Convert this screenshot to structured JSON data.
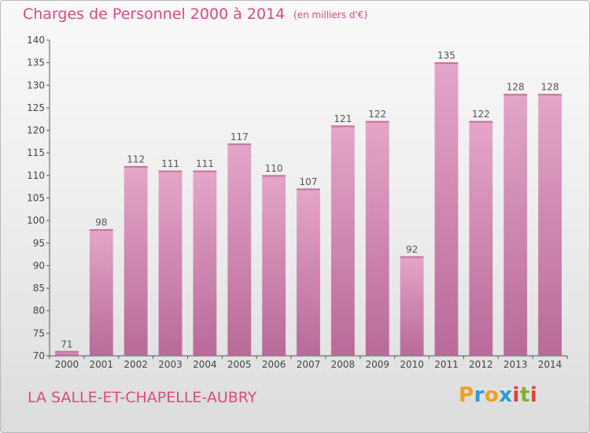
{
  "header": {
    "title": "Charges de Personnel 2000 à 2014",
    "unit": "(en milliers d'€)"
  },
  "footer": {
    "commune": "LA SALLE-ET-CHAPELLE-AUBRY",
    "logo_letters": [
      "P",
      "r",
      "o",
      "x",
      "i",
      "t",
      "i"
    ],
    "logo_colors": [
      "#f0a020",
      "#2a9ad8",
      "#f0a020",
      "#2a9ad8",
      "#e04040",
      "#80b030",
      "#e04040"
    ]
  },
  "colors": {
    "bar_top": "#e4a6c8",
    "bar_bottom": "#b86a98",
    "text_accent": "#d94a84"
  },
  "chart_data": {
    "type": "bar",
    "title": "Charges de Personnel 2000 à 2014",
    "subtitle": "(en milliers d'€)",
    "categories": [
      "2000",
      "2001",
      "2002",
      "2003",
      "2004",
      "2005",
      "2006",
      "2007",
      "2008",
      "2009",
      "2010",
      "2011",
      "2012",
      "2013",
      "2014"
    ],
    "values": [
      71,
      98,
      112,
      111,
      111,
      117,
      110,
      107,
      121,
      122,
      92,
      135,
      122,
      128,
      128
    ],
    "ylim": [
      70,
      140
    ],
    "yticks": [
      70,
      75,
      80,
      85,
      90,
      95,
      100,
      105,
      110,
      115,
      120,
      125,
      130,
      135,
      140
    ],
    "xlabel": "",
    "ylabel": "",
    "grid": false,
    "data_labels": true
  }
}
